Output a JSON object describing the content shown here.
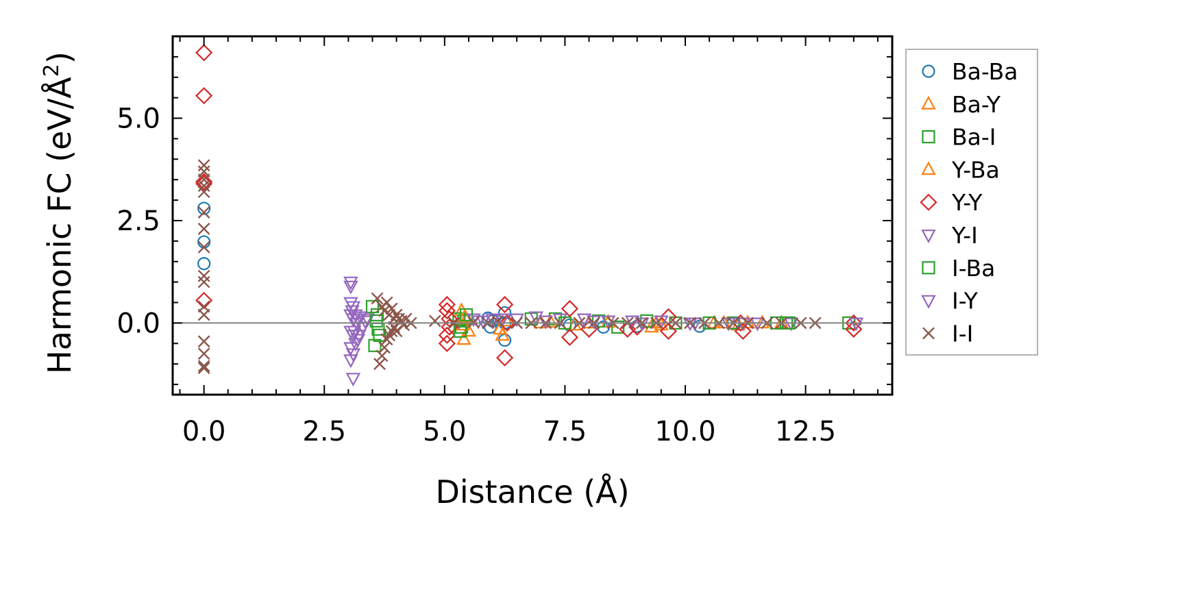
{
  "chart_data": {
    "type": "scatter",
    "title": "",
    "xlabel": "Distance (Å)",
    "ylabel": "Harmonic FC (eV/Å²)",
    "ylabel_main": "Harmonic FC (eV/Å",
    "ylabel_sup": "2",
    "ylabel_end": ")",
    "xlim": [
      -0.65,
      14.3
    ],
    "ylim": [
      -1.75,
      7.0
    ],
    "xticks": [
      0.0,
      2.5,
      5.0,
      7.5,
      10.0,
      12.5
    ],
    "xtick_labels": [
      "0.0",
      "2.5",
      "5.0",
      "7.5",
      "10.0",
      "12.5"
    ],
    "yticks": [
      0.0,
      2.5,
      5.0
    ],
    "ytick_labels": [
      "0.0",
      "2.5",
      "5.0"
    ],
    "grid": false,
    "zero_line": true,
    "legend_position": "outside-right",
    "series": [
      {
        "name": "Ba-Ba",
        "marker": "circle",
        "color": "#1f77b4",
        "x": [
          0.0,
          0.0,
          0.0,
          5.9,
          5.95,
          6.0,
          6.25,
          6.25,
          6.25,
          7.6,
          8.3,
          9.0,
          10.3,
          11.0
        ],
        "y": [
          2.8,
          1.98,
          1.45,
          0.12,
          -0.1,
          0.05,
          0.25,
          -0.42,
          0.0,
          -0.05,
          -0.1,
          -0.08,
          -0.08,
          0.0
        ]
      },
      {
        "name": "Ba-Y",
        "marker": "triangle-up",
        "color": "#ff7f0e",
        "x": [
          5.35,
          5.4,
          5.45,
          5.5,
          6.2,
          6.3,
          7.0,
          7.7,
          8.4,
          9.3,
          9.4,
          10.6,
          11.1,
          11.3,
          12.0
        ],
        "y": [
          0.3,
          -0.4,
          0.1,
          -0.2,
          -0.3,
          0.05,
          0.0,
          -0.05,
          0.02,
          -0.1,
          0.0,
          0.0,
          -0.05,
          0.0,
          0.0
        ]
      },
      {
        "name": "Ba-I",
        "marker": "square",
        "color": "#2ca02c",
        "x": [
          3.5,
          3.55,
          3.6,
          3.65,
          5.3,
          5.35,
          5.4,
          6.8,
          7.3,
          8.2,
          8.6,
          9.8,
          11.0,
          11.9,
          12.15,
          13.4
        ],
        "y": [
          0.4,
          -0.55,
          0.2,
          -0.3,
          0.1,
          -0.1,
          0.05,
          0.1,
          0.1,
          0.05,
          -0.1,
          0.0,
          0.0,
          0.0,
          0.0,
          0.0
        ]
      },
      {
        "name": "Y-Ba",
        "marker": "triangle-up",
        "color": "#ff7f0e",
        "x": [
          5.38,
          5.42,
          6.15,
          7.2,
          8.0,
          9.5,
          10.8,
          11.6
        ],
        "y": [
          -0.05,
          0.15,
          -0.15,
          0.02,
          0.0,
          -0.05,
          0.0,
          0.0
        ]
      },
      {
        "name": "Y-Y",
        "marker": "diamond",
        "color": "#d62728",
        "x": [
          0.0,
          0.0,
          0.0,
          0.0,
          0.0,
          5.05,
          5.05,
          5.05,
          5.05,
          5.1,
          5.1,
          6.25,
          6.25,
          6.3,
          7.6,
          7.6,
          8.0,
          8.8,
          9.0,
          9.65,
          9.65,
          11.15,
          11.2,
          13.5,
          13.5
        ],
        "y": [
          6.6,
          5.55,
          3.45,
          3.4,
          0.55,
          0.45,
          0.3,
          -0.3,
          -0.5,
          0.1,
          -0.1,
          0.45,
          -0.85,
          0.0,
          0.35,
          -0.35,
          -0.15,
          -0.15,
          -0.1,
          0.15,
          -0.2,
          0.0,
          -0.2,
          0.0,
          -0.15
        ]
      },
      {
        "name": "Y-I",
        "marker": "triangle-down",
        "color": "#9467bd",
        "x": [
          3.05,
          3.05,
          3.05,
          3.05,
          3.05,
          3.05,
          3.05,
          3.1,
          3.1,
          3.1,
          3.1,
          3.1,
          3.15,
          3.15,
          3.2,
          3.2,
          3.25,
          3.3,
          3.35,
          3.4,
          5.6,
          5.8,
          6.0,
          6.5,
          6.9,
          7.4,
          7.9,
          8.4,
          8.9,
          9.5,
          10.2,
          10.9,
          11.5,
          12.2,
          13.55
        ],
        "y": [
          1.0,
          0.9,
          0.5,
          0.2,
          -0.2,
          -0.6,
          -0.9,
          0.4,
          0.1,
          -0.3,
          -0.75,
          -1.35,
          0.2,
          -0.5,
          0.1,
          -0.4,
          0.15,
          -0.1,
          0.05,
          0.1,
          0.1,
          0.05,
          0.1,
          0.1,
          0.15,
          0.1,
          0.1,
          0.05,
          0.05,
          0.05,
          0.0,
          0.0,
          0.0,
          0.0,
          0.0
        ]
      },
      {
        "name": "I-Ba",
        "marker": "square",
        "color": "#2ca02c",
        "x": [
          3.58,
          3.62,
          5.32,
          5.45,
          7.5,
          9.2,
          10.5,
          12.1
        ],
        "y": [
          0.05,
          -0.15,
          -0.2,
          0.2,
          0.0,
          0.05,
          0.0,
          0.0
        ]
      },
      {
        "name": "I-Y",
        "marker": "triangle-down",
        "color": "#9467bd",
        "x": [
          3.08,
          3.12,
          3.18,
          3.22,
          5.7,
          6.2,
          7.1,
          8.1,
          9.1,
          10.1,
          11.2
        ],
        "y": [
          0.3,
          -0.2,
          0.0,
          -0.3,
          0.05,
          0.1,
          0.05,
          0.05,
          0.0,
          0.0,
          0.0
        ]
      },
      {
        "name": "I-I",
        "marker": "x",
        "color": "#8c564b",
        "x": [
          0.0,
          0.0,
          0.0,
          0.0,
          0.0,
          0.0,
          0.0,
          0.0,
          0.0,
          0.0,
          0.0,
          0.0,
          0.0,
          0.0,
          0.0,
          0.0,
          3.6,
          3.65,
          3.7,
          3.7,
          3.75,
          3.75,
          3.8,
          3.8,
          3.85,
          3.85,
          3.9,
          3.9,
          3.95,
          3.95,
          4.0,
          4.0,
          4.05,
          4.1,
          4.15,
          4.2,
          4.3,
          4.8,
          5.2,
          5.6,
          5.9,
          6.1,
          6.5,
          6.8,
          7.1,
          7.4,
          7.8,
          8.1,
          8.5,
          8.8,
          9.1,
          9.4,
          9.8,
          10.1,
          10.4,
          10.7,
          11.0,
          11.3,
          11.7,
          12.0,
          12.4,
          12.7
        ],
        "y": [
          3.85,
          3.7,
          3.5,
          3.35,
          3.2,
          2.7,
          2.3,
          1.85,
          1.15,
          1.0,
          0.4,
          0.2,
          -0.45,
          -0.75,
          -1.1,
          -1.05,
          0.6,
          -1.0,
          0.4,
          -0.8,
          0.3,
          -0.6,
          0.5,
          -0.4,
          0.2,
          -0.3,
          0.35,
          -0.2,
          0.1,
          -0.1,
          0.2,
          -0.2,
          0.1,
          0.05,
          -0.05,
          0.1,
          0.0,
          0.05,
          0.0,
          0.02,
          0.0,
          0.05,
          0.0,
          0.0,
          0.0,
          0.0,
          0.0,
          0.0,
          0.0,
          0.0,
          0.0,
          0.0,
          0.0,
          0.0,
          0.0,
          0.0,
          0.0,
          0.0,
          0.0,
          0.0,
          0.0,
          0.0
        ]
      }
    ]
  }
}
